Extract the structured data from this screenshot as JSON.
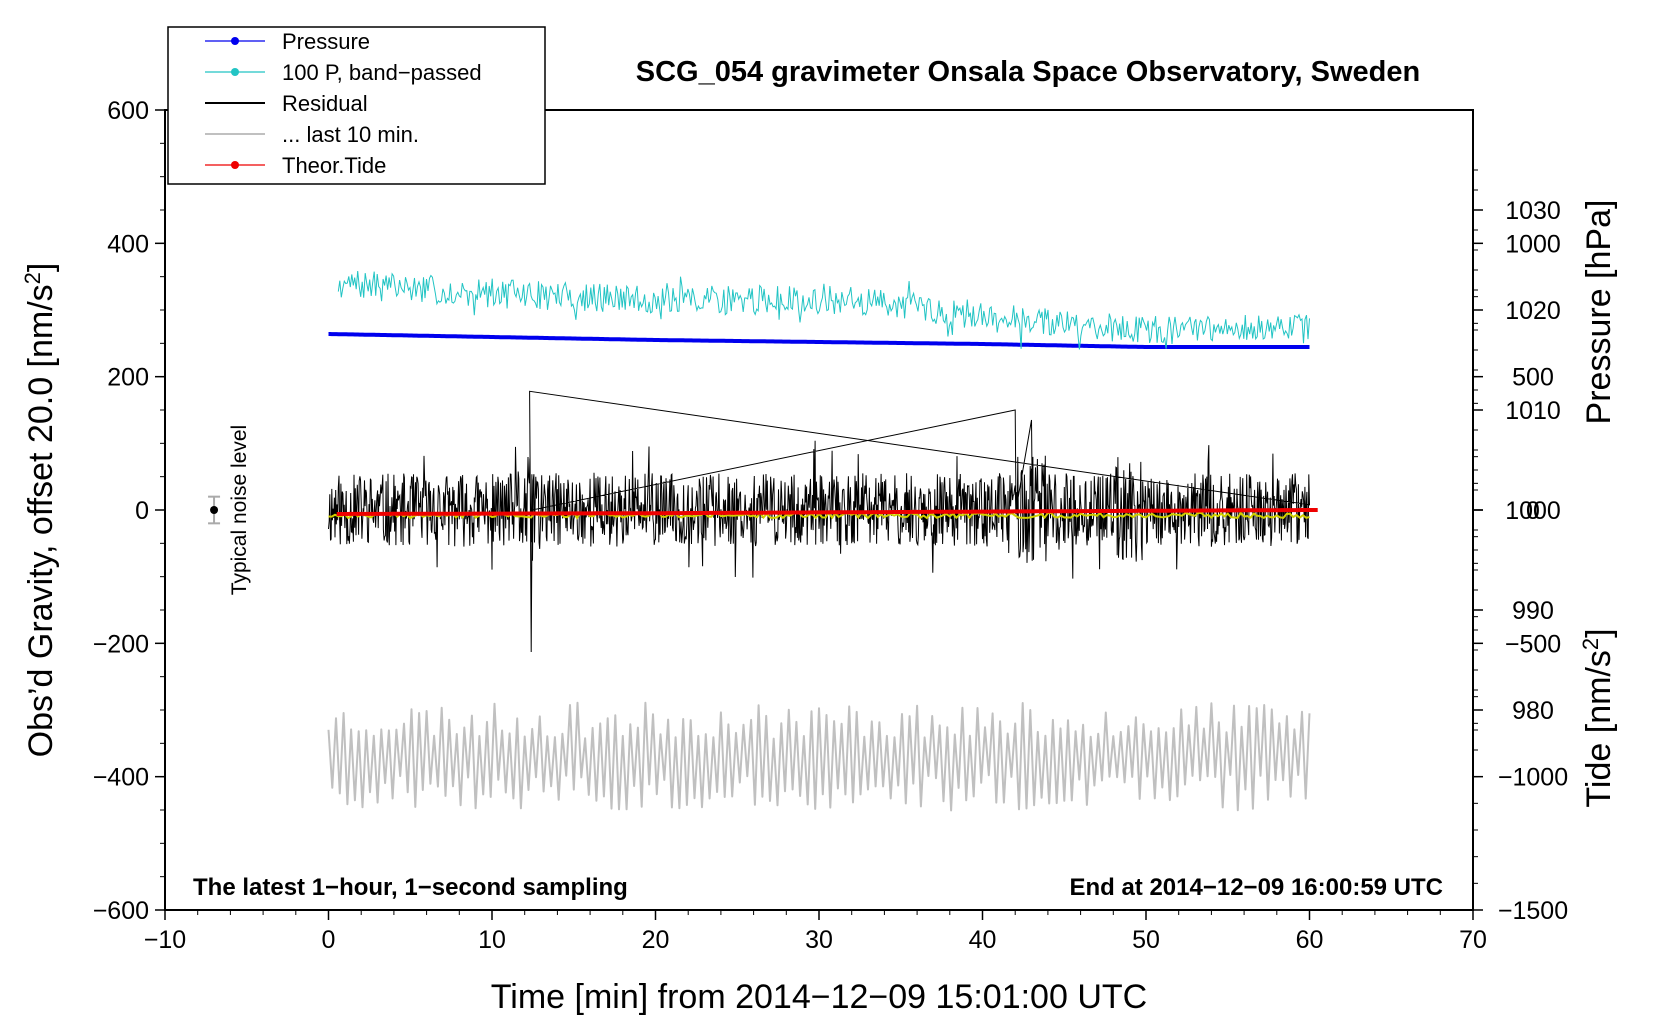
{
  "chart_data": {
    "type": "line",
    "title": "SCG_054 gravimeter Onsala Space Observatory, Sweden",
    "xlabel": "Time [min] from 2014−12−09 15:01:00 UTC",
    "ylabel_left": "Obs’d Gravity, offset 20.0 [nm/s²]",
    "ylabel_left_main": "Obs’d Gravity, offset 20.0 [nm/s",
    "ylabel_left_sup": "2",
    "ylabel_left_close": "]",
    "ylabel_right_pressure": "Pressure [hPa]",
    "ylabel_right_tide": "Tide [nm/s²]",
    "ylabel_right_tide_main": "Tide [nm/s",
    "ylabel_right_tide_sup": "2",
    "ylabel_right_tide_close": "]",
    "xlim": [
      -10,
      70
    ],
    "ylim_left": [
      -600,
      600
    ],
    "x_ticks": [
      -10,
      0,
      10,
      20,
      30,
      40,
      50,
      60,
      70
    ],
    "x_tick_labels": [
      "−10",
      "0",
      "10",
      "20",
      "30",
      "40",
      "50",
      "60",
      "70"
    ],
    "y_left_ticks": [
      600,
      400,
      200,
      0,
      -200,
      -400,
      -600
    ],
    "y_left_tick_labels": [
      "600",
      "400",
      "200",
      "0",
      "−200",
      "−400",
      "−600"
    ],
    "pressure_ticks": [
      1030,
      1020,
      1010,
      1000,
      990,
      980
    ],
    "pressure_tick_labels": [
      "1030",
      "1020",
      "1010",
      "1000",
      "990",
      "980"
    ],
    "pressure_axis_range_hPa": [
      960,
      1040
    ],
    "tide_ticks": [
      1000,
      500,
      0,
      -500,
      -1000,
      -1500
    ],
    "tide_tick_labels": [
      "1000",
      "500",
      "0",
      "−500",
      "−1000",
      "−1500"
    ],
    "tide_axis_range": [
      -1500,
      1500
    ],
    "bottom_left_note": "The latest 1−hour, 1−second sampling",
    "bottom_right_note": "End at 2014−12−09 16:00:59 UTC",
    "noise_label": "Typical noise level",
    "noise_marker": {
      "x": -7,
      "y": 0,
      "err": 20
    },
    "legend": [
      {
        "label": "Pressure",
        "color": "#0000ee",
        "style": "line-dot"
      },
      {
        "label": "100 P, band−passed",
        "color": "#22c4c4",
        "style": "line-dot"
      },
      {
        "label": "Residual",
        "color": "#000000",
        "style": "line"
      },
      {
        "label": "... last 10 min.",
        "color": "#c0c0c0",
        "style": "line"
      },
      {
        "label": "Theor.Tide",
        "color": "#ee0000",
        "style": "line-dot"
      }
    ],
    "series": [
      {
        "name": "Pressure",
        "axis": "pressure",
        "color": "#0000ee",
        "x": [
          0,
          10,
          20,
          30,
          40,
          50,
          60
        ],
        "y": [
          1017.6,
          1017.3,
          1017.0,
          1016.8,
          1016.6,
          1016.3,
          1016.3
        ]
      },
      {
        "name": "100 P, band−passed",
        "axis": "left",
        "color": "#22c4c4",
        "trend_x": [
          0,
          10,
          20,
          30,
          35,
          40,
          50,
          60
        ],
        "trend_y": [
          340,
          325,
          315,
          315,
          310,
          290,
          270,
          272
        ],
        "amplitude": 22,
        "seed": 7
      },
      {
        "name": "Residual",
        "axis": "left",
        "color": "#000000",
        "peak_x": [
          12.3,
          12.4,
          42.0,
          43.0
        ],
        "peak_y": [
          178,
          -213,
          150,
          135
        ],
        "amplitude": 55,
        "seed": 11
      },
      {
        "name": "Residual (smoothed)",
        "axis": "left",
        "color": "#d0d000",
        "y_level": -8
      },
      {
        "name": "... last 10 min.",
        "axis": "left",
        "color": "#c0c0c0",
        "center": -370,
        "amplitude": 60,
        "seed": 23
      },
      {
        "name": "Theor.Tide",
        "axis": "tide",
        "color": "#ee0000",
        "x": [
          0,
          20,
          40,
          60
        ],
        "y": [
          -15,
          -12,
          -6,
          0
        ]
      }
    ]
  }
}
